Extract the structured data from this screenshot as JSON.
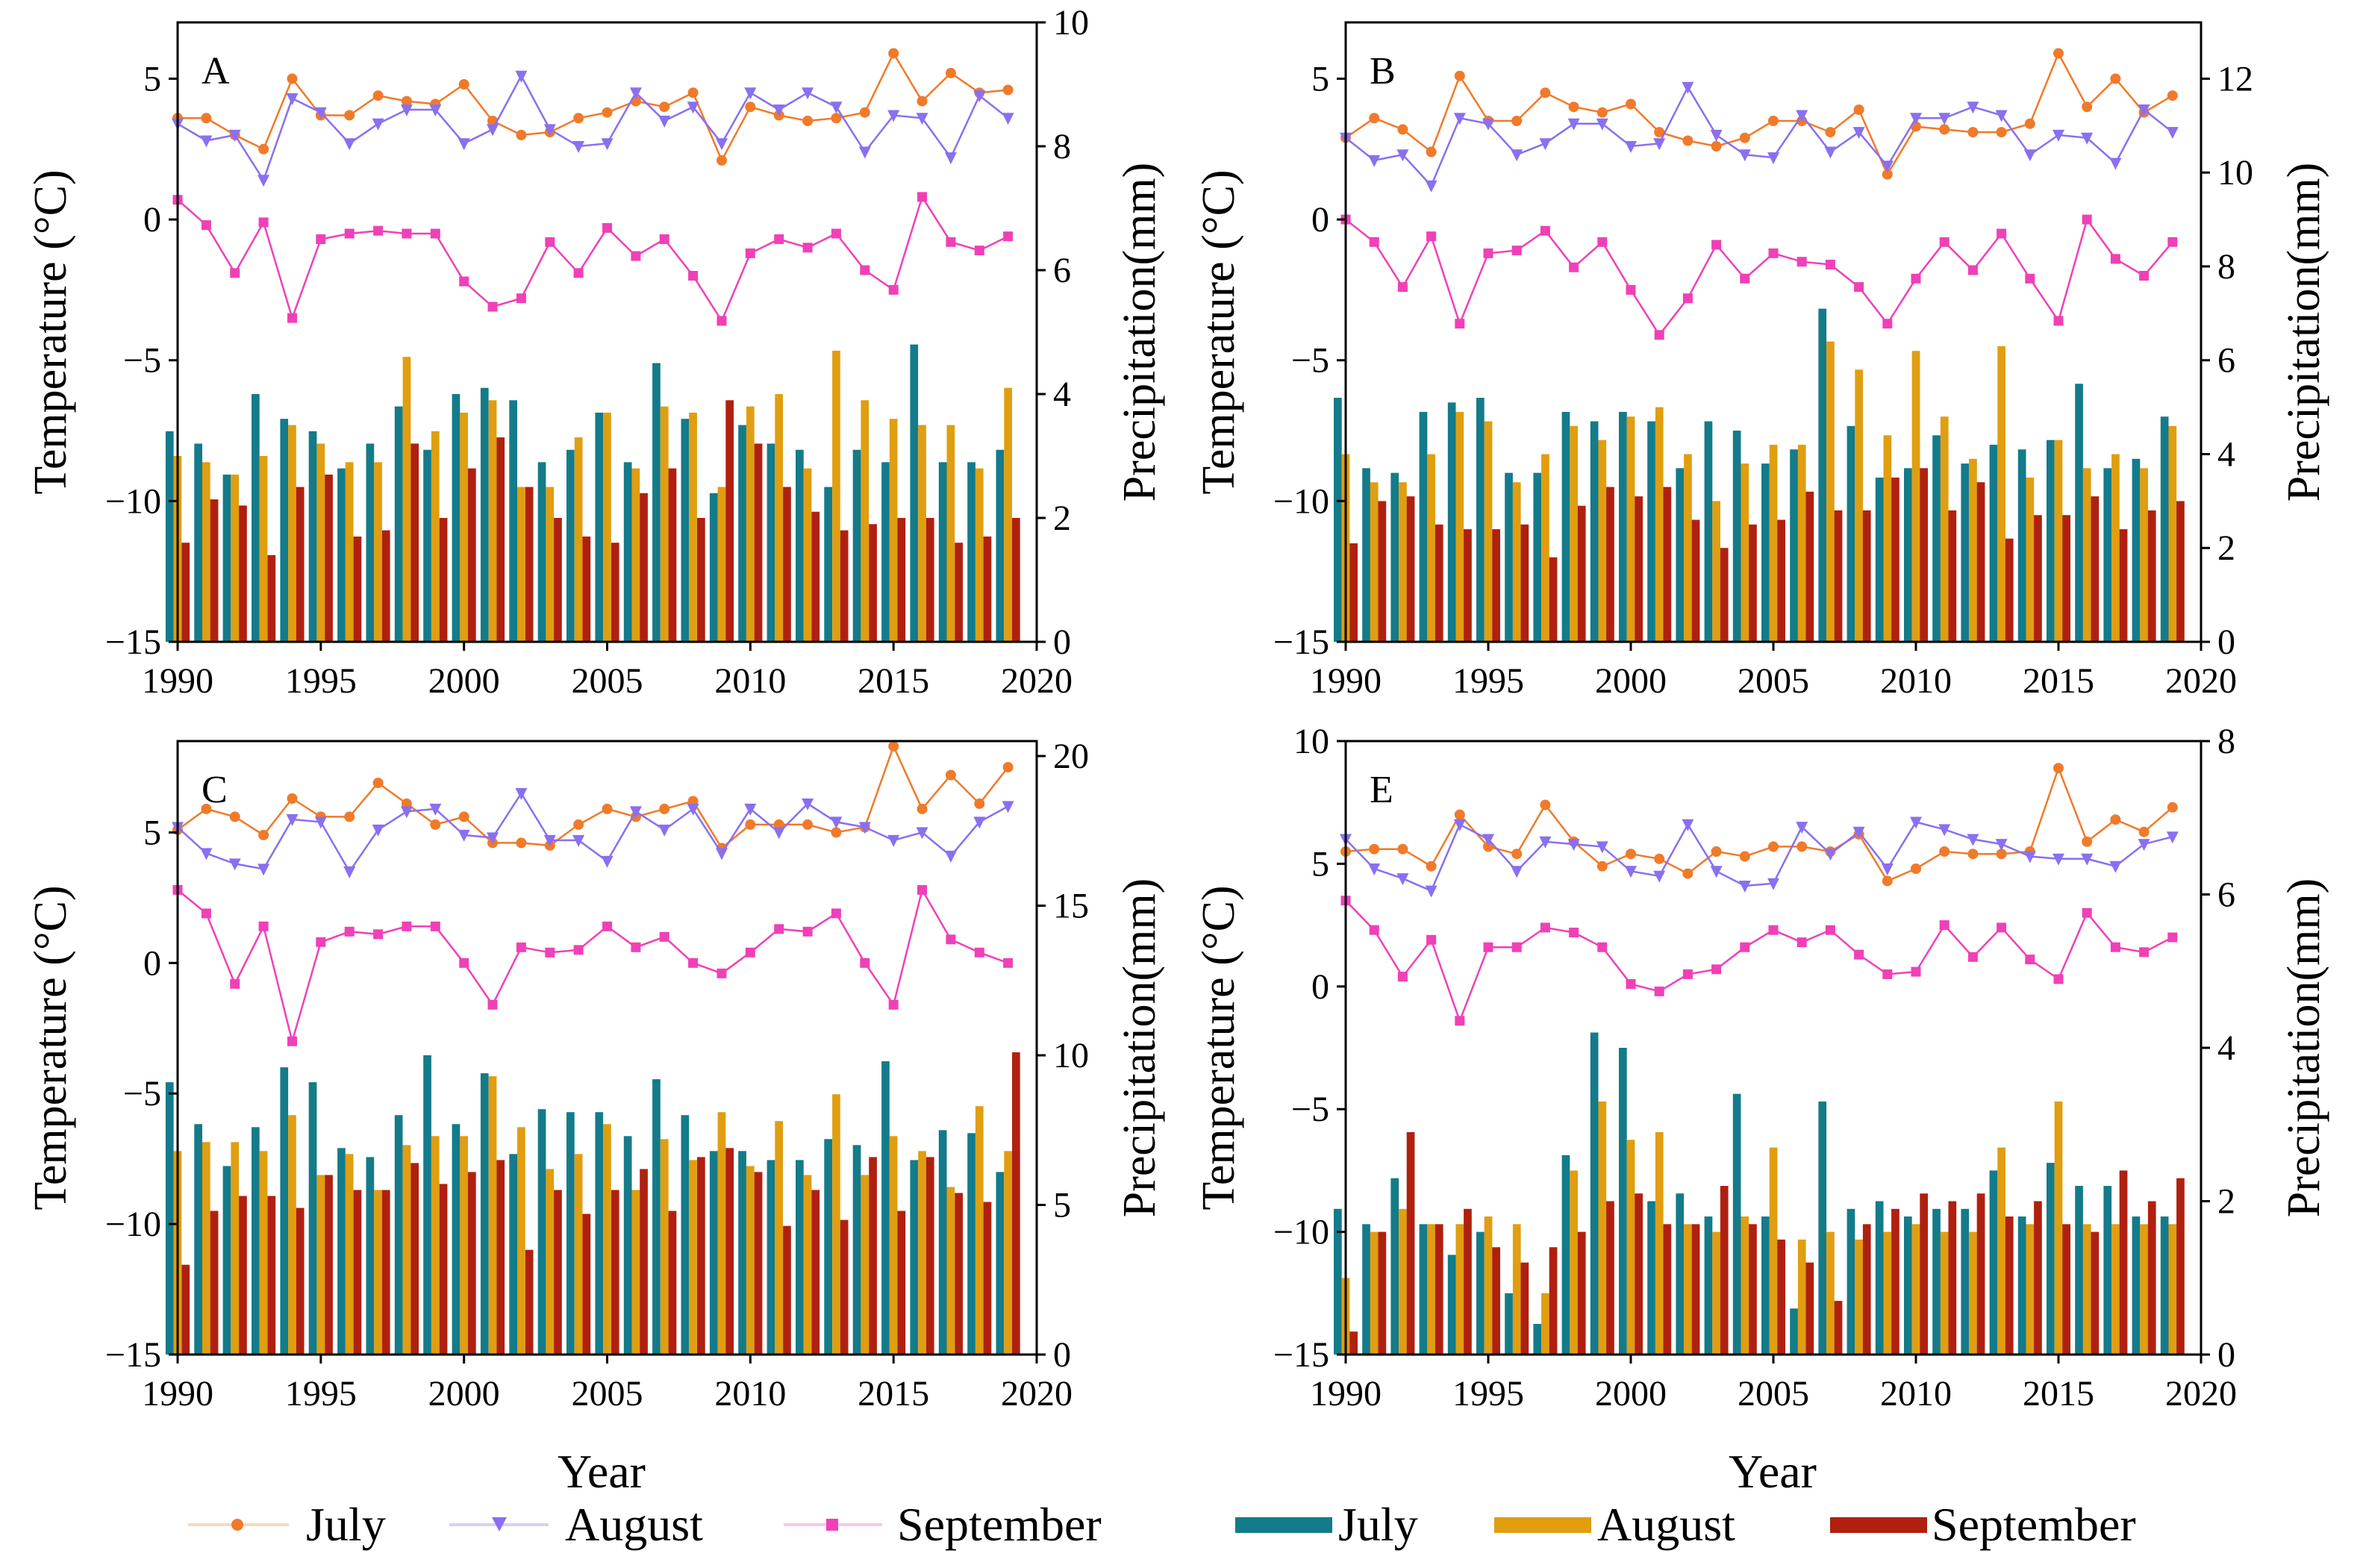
{
  "figure": {
    "x_title": "Year",
    "colors": {
      "temp_july": "#f07a2a",
      "temp_august": "#8a6ff0",
      "temp_september": "#f040b8",
      "precip_july": "#137b8a",
      "precip_august": "#e09e10",
      "precip_september": "#b02010",
      "legend_line_july": "#f8d8c2",
      "legend_line_august": "#d8d0f8",
      "legend_line_september": "#f8c8ec"
    },
    "legend": [
      {
        "label": "July",
        "kind": "line",
        "marker": "circle"
      },
      {
        "label": "August",
        "kind": "line",
        "marker": "triangle-down"
      },
      {
        "label": "September",
        "kind": "line",
        "marker": "square"
      },
      {
        "label": "July",
        "kind": "bar"
      },
      {
        "label": "August",
        "kind": "bar"
      },
      {
        "label": "September",
        "kind": "bar"
      }
    ]
  },
  "chart_data": [
    {
      "type": "bar+line",
      "panel_label": "A",
      "ylabel_left": "Temperature (°C)",
      "ylabel_right": "Precipitation(mm)",
      "xlim": [
        1990,
        2020
      ],
      "xticks": [
        1990,
        1995,
        2000,
        2005,
        2010,
        2015,
        2020
      ],
      "ylim_left": [
        -15,
        7
      ],
      "yticks_left": [
        -15,
        -10,
        -5,
        0,
        5
      ],
      "ylim_right": [
        0,
        10
      ],
      "yticks_right": [
        0,
        2,
        4,
        6,
        8,
        10
      ],
      "years": [
        1990,
        1991,
        1992,
        1993,
        1994,
        1995,
        1996,
        1997,
        1998,
        1999,
        2000,
        2001,
        2002,
        2003,
        2004,
        2005,
        2006,
        2007,
        2008,
        2009,
        2010,
        2011,
        2012,
        2013,
        2014,
        2015,
        2016,
        2017,
        2018,
        2019
      ],
      "temperature": [
        {
          "name": "July",
          "values": [
            3.6,
            3.6,
            3.0,
            2.5,
            5.0,
            3.7,
            3.7,
            4.4,
            4.2,
            4.1,
            4.8,
            3.5,
            3.0,
            3.1,
            3.6,
            3.8,
            4.2,
            4.0,
            4.5,
            2.1,
            4.0,
            3.7,
            3.5,
            3.6,
            3.8,
            5.9,
            4.2,
            5.2,
            4.5,
            4.6
          ]
        },
        {
          "name": "August",
          "values": [
            3.4,
            2.8,
            3.0,
            1.4,
            4.3,
            3.8,
            2.7,
            3.4,
            3.9,
            3.9,
            2.7,
            3.2,
            5.1,
            3.2,
            2.6,
            2.7,
            4.5,
            3.5,
            4.0,
            2.7,
            4.5,
            3.9,
            4.5,
            4.0,
            2.4,
            3.7,
            3.6,
            2.2,
            4.4,
            3.6
          ]
        },
        {
          "name": "September",
          "values": [
            0.7,
            -0.2,
            -1.9,
            -0.1,
            -3.5,
            -0.7,
            -0.5,
            -0.4,
            -0.5,
            -0.5,
            -2.2,
            -3.1,
            -2.8,
            -0.8,
            -1.9,
            -0.3,
            -1.3,
            -0.7,
            -2.0,
            -3.6,
            -1.2,
            -0.7,
            -1.0,
            -0.5,
            -1.8,
            -2.5,
            0.8,
            -0.8,
            -1.1,
            -0.6
          ]
        }
      ],
      "precipitation": [
        {
          "name": "July",
          "values": [
            3.4,
            3.2,
            2.7,
            4.0,
            3.6,
            3.4,
            2.8,
            3.2,
            3.8,
            3.1,
            4.0,
            4.1,
            3.9,
            2.9,
            3.1,
            3.7,
            2.9,
            4.5,
            3.6,
            2.4,
            3.5,
            3.2,
            3.1,
            2.5,
            3.1,
            2.9,
            4.8,
            2.9,
            2.9,
            3.1
          ]
        },
        {
          "name": "August",
          "values": [
            3.0,
            2.9,
            2.7,
            3.0,
            3.5,
            3.2,
            2.9,
            2.9,
            4.6,
            3.4,
            3.7,
            3.9,
            2.5,
            2.5,
            3.3,
            3.7,
            2.8,
            3.8,
            3.7,
            2.5,
            3.8,
            4.0,
            2.8,
            4.7,
            3.9,
            3.6,
            3.5,
            3.5,
            2.8,
            4.1
          ]
        },
        {
          "name": "September",
          "values": [
            1.6,
            2.3,
            2.2,
            1.4,
            2.5,
            2.7,
            1.7,
            1.8,
            3.2,
            2.0,
            2.8,
            3.3,
            2.5,
            2.0,
            1.7,
            1.6,
            2.4,
            2.8,
            2.0,
            3.9,
            3.2,
            2.5,
            2.1,
            1.8,
            1.9,
            2.0,
            2.0,
            1.6,
            1.7,
            2.0
          ]
        }
      ]
    },
    {
      "type": "bar+line",
      "panel_label": "B",
      "ylabel_left": "Temperature (°C)",
      "ylabel_right": "Precipitation(mm)",
      "xlim": [
        1990,
        2020
      ],
      "xticks": [
        1990,
        1995,
        2000,
        2005,
        2010,
        2015,
        2020
      ],
      "ylim_left": [
        -15,
        7
      ],
      "yticks_left": [
        -15,
        -10,
        -5,
        0,
        5
      ],
      "ylim_right": [
        0,
        13.2
      ],
      "yticks_right": [
        0,
        2,
        4,
        6,
        8,
        10,
        12
      ],
      "years": [
        1990,
        1991,
        1992,
        1993,
        1994,
        1995,
        1996,
        1997,
        1998,
        1999,
        2000,
        2001,
        2002,
        2003,
        2004,
        2005,
        2006,
        2007,
        2008,
        2009,
        2010,
        2011,
        2012,
        2013,
        2014,
        2015,
        2016,
        2017,
        2018,
        2019
      ],
      "temperature": [
        {
          "name": "July",
          "values": [
            2.9,
            3.6,
            3.2,
            2.4,
            5.1,
            3.5,
            3.5,
            4.5,
            4.0,
            3.8,
            4.1,
            3.1,
            2.8,
            2.6,
            2.9,
            3.5,
            3.5,
            3.1,
            3.9,
            1.6,
            3.3,
            3.2,
            3.1,
            3.1,
            3.4,
            5.9,
            4.0,
            5.0,
            3.8,
            4.4
          ]
        },
        {
          "name": "August",
          "values": [
            2.9,
            2.1,
            2.3,
            1.2,
            3.6,
            3.4,
            2.3,
            2.7,
            3.4,
            3.4,
            2.6,
            2.7,
            4.7,
            3.0,
            2.3,
            2.2,
            3.7,
            2.4,
            3.1,
            1.9,
            3.6,
            3.6,
            4.0,
            3.7,
            2.3,
            3.0,
            2.9,
            2.0,
            3.9,
            3.1
          ]
        },
        {
          "name": "September",
          "values": [
            0.0,
            -0.8,
            -2.4,
            -0.6,
            -3.7,
            -1.2,
            -1.1,
            -0.4,
            -1.7,
            -0.8,
            -2.5,
            -4.1,
            -2.8,
            -0.9,
            -2.1,
            -1.2,
            -1.5,
            -1.6,
            -2.4,
            -3.7,
            -2.1,
            -0.8,
            -1.8,
            -0.5,
            -2.1,
            -3.6,
            0.0,
            -1.4,
            -2.0,
            -0.8
          ]
        }
      ],
      "precipitation": [
        {
          "name": "July",
          "values": [
            5.2,
            3.7,
            3.6,
            4.9,
            5.1,
            5.2,
            3.6,
            3.6,
            4.9,
            4.7,
            4.9,
            4.7,
            3.7,
            4.7,
            4.5,
            3.8,
            4.1,
            7.1,
            4.6,
            3.5,
            3.7,
            4.4,
            3.8,
            4.2,
            4.1,
            4.3,
            5.5,
            3.7,
            3.9,
            4.8
          ]
        },
        {
          "name": "August",
          "values": [
            4.0,
            3.4,
            3.4,
            4.0,
            4.9,
            4.7,
            3.4,
            4.0,
            4.6,
            4.3,
            4.8,
            5.0,
            4.0,
            3.0,
            3.8,
            4.2,
            4.2,
            6.4,
            5.8,
            4.4,
            6.2,
            4.8,
            3.9,
            6.3,
            3.5,
            4.3,
            3.7,
            4.0,
            3.7,
            4.6
          ]
        },
        {
          "name": "September",
          "values": [
            2.1,
            3.0,
            3.1,
            2.5,
            2.4,
            2.4,
            2.5,
            1.8,
            2.9,
            3.3,
            3.1,
            3.3,
            2.6,
            2.0,
            2.5,
            2.6,
            3.2,
            2.8,
            2.8,
            3.5,
            3.7,
            2.8,
            3.4,
            2.2,
            2.7,
            2.7,
            3.1,
            2.4,
            2.8,
            3.0
          ]
        }
      ]
    },
    {
      "type": "bar+line",
      "panel_label": "C",
      "ylabel_left": "Temperature (°C)",
      "ylabel_right": "Precipitation(mm)",
      "xlim": [
        1990,
        2020
      ],
      "xticks": [
        1990,
        1995,
        2000,
        2005,
        2010,
        2015,
        2020
      ],
      "ylim_left": [
        -15,
        8.5
      ],
      "yticks_left": [
        -15,
        -10,
        -5,
        0,
        5
      ],
      "ylim_right": [
        0,
        20.5
      ],
      "yticks_right": [
        0,
        5,
        10,
        15,
        20
      ],
      "years": [
        1990,
        1991,
        1992,
        1993,
        1994,
        1995,
        1996,
        1997,
        1998,
        1999,
        2000,
        2001,
        2002,
        2003,
        2004,
        2005,
        2006,
        2007,
        2008,
        2009,
        2010,
        2011,
        2012,
        2013,
        2014,
        2015,
        2016,
        2017,
        2018,
        2019
      ],
      "temperature": [
        {
          "name": "July",
          "values": [
            5.1,
            5.9,
            5.6,
            4.9,
            6.3,
            5.6,
            5.6,
            6.9,
            6.1,
            5.3,
            5.6,
            4.6,
            4.6,
            4.5,
            5.3,
            5.9,
            5.6,
            5.9,
            6.2,
            4.4,
            5.3,
            5.3,
            5.3,
            5.0,
            5.2,
            8.3,
            5.9,
            7.2,
            6.1,
            7.5
          ]
        },
        {
          "name": "August",
          "values": [
            5.2,
            4.2,
            3.8,
            3.6,
            5.5,
            5.4,
            3.5,
            5.1,
            5.8,
            5.9,
            4.9,
            4.8,
            6.5,
            4.7,
            4.7,
            3.9,
            5.8,
            5.1,
            5.9,
            4.2,
            5.9,
            5.0,
            6.1,
            5.4,
            5.2,
            4.7,
            5.0,
            4.1,
            5.4,
            6.0
          ]
        },
        {
          "name": "September",
          "values": [
            2.8,
            1.9,
            -0.8,
            1.4,
            -3.0,
            0.8,
            1.2,
            1.1,
            1.4,
            1.4,
            0.0,
            -1.6,
            0.6,
            0.4,
            0.5,
            1.4,
            0.6,
            1.0,
            0.0,
            -0.4,
            0.4,
            1.3,
            1.2,
            1.9,
            0.0,
            -1.6,
            2.8,
            0.9,
            0.4,
            0.0
          ]
        }
      ],
      "precipitation": [
        {
          "name": "July",
          "values": [
            9.1,
            7.7,
            6.3,
            7.6,
            9.6,
            9.1,
            6.9,
            6.6,
            8.0,
            10.0,
            7.7,
            9.4,
            6.7,
            8.2,
            8.1,
            8.1,
            7.3,
            9.2,
            8.0,
            6.8,
            6.8,
            6.5,
            6.5,
            7.2,
            7.0,
            9.8,
            6.5,
            7.5,
            7.4,
            6.1
          ]
        },
        {
          "name": "August",
          "values": [
            6.8,
            7.1,
            7.1,
            6.8,
            8.0,
            6.0,
            6.7,
            5.5,
            7.0,
            7.3,
            7.3,
            9.3,
            7.6,
            6.2,
            6.7,
            7.7,
            5.5,
            7.2,
            6.5,
            8.1,
            6.3,
            7.8,
            6.0,
            8.7,
            6.0,
            7.3,
            6.8,
            5.6,
            8.3,
            6.8
          ]
        },
        {
          "name": "September",
          "values": [
            3.0,
            4.8,
            5.3,
            5.3,
            4.9,
            6.0,
            5.5,
            5.5,
            6.4,
            5.7,
            6.1,
            6.5,
            3.5,
            5.5,
            4.7,
            5.5,
            6.2,
            4.8,
            6.6,
            6.9,
            6.1,
            4.3,
            5.5,
            4.5,
            6.6,
            4.8,
            6.6,
            5.4,
            5.1,
            10.1
          ]
        }
      ]
    },
    {
      "type": "bar+line",
      "panel_label": "E",
      "ylabel_left": "Temperature (°C)",
      "ylabel_right": "Precipitation(mm)",
      "xlim": [
        1990,
        2020
      ],
      "xticks": [
        1990,
        1995,
        2000,
        2005,
        2010,
        2015,
        2020
      ],
      "ylim_left": [
        -15,
        10
      ],
      "yticks_left": [
        -15,
        -10,
        -5,
        0,
        5,
        10
      ],
      "ylim_right": [
        0,
        8
      ],
      "yticks_right": [
        0,
        2,
        4,
        6,
        8
      ],
      "years": [
        1990,
        1991,
        1992,
        1993,
        1994,
        1995,
        1996,
        1997,
        1998,
        1999,
        2000,
        2001,
        2002,
        2003,
        2004,
        2005,
        2006,
        2007,
        2008,
        2009,
        2010,
        2011,
        2012,
        2013,
        2014,
        2015,
        2016,
        2017,
        2018,
        2019
      ],
      "temperature": [
        {
          "name": "July",
          "values": [
            5.5,
            5.6,
            5.6,
            4.9,
            7.0,
            5.7,
            5.4,
            7.4,
            5.9,
            4.9,
            5.4,
            5.2,
            4.6,
            5.5,
            5.3,
            5.7,
            5.7,
            5.5,
            6.2,
            4.3,
            4.8,
            5.5,
            5.4,
            5.4,
            5.5,
            8.9,
            5.9,
            6.8,
            6.3,
            7.3
          ]
        },
        {
          "name": "August",
          "values": [
            6.0,
            4.8,
            4.4,
            3.9,
            6.6,
            6.0,
            4.7,
            5.9,
            5.8,
            5.7,
            4.7,
            4.5,
            6.6,
            4.7,
            4.1,
            4.2,
            6.5,
            5.4,
            6.3,
            4.8,
            6.7,
            6.4,
            6.0,
            5.8,
            5.3,
            5.2,
            5.2,
            4.9,
            5.8,
            6.1
          ]
        },
        {
          "name": "September",
          "values": [
            3.5,
            2.3,
            0.4,
            1.9,
            -1.4,
            1.6,
            1.6,
            2.4,
            2.2,
            1.6,
            0.1,
            -0.2,
            0.5,
            0.7,
            1.6,
            2.3,
            1.8,
            2.3,
            1.3,
            0.5,
            0.6,
            2.5,
            1.2,
            2.4,
            1.1,
            0.3,
            3.0,
            1.6,
            1.4,
            2.0
          ]
        }
      ],
      "precipitation": [
        {
          "name": "July",
          "values": [
            1.9,
            1.7,
            2.3,
            1.7,
            1.3,
            1.6,
            0.8,
            0.4,
            2.6,
            4.2,
            4.0,
            2.0,
            2.1,
            1.8,
            3.4,
            1.8,
            0.6,
            3.3,
            1.9,
            2.0,
            1.8,
            1.9,
            1.9,
            2.4,
            1.8,
            2.5,
            2.2,
            2.2,
            1.8,
            1.8
          ]
        },
        {
          "name": "August",
          "values": [
            1.0,
            1.6,
            1.9,
            1.7,
            1.7,
            1.8,
            1.7,
            0.8,
            2.4,
            3.3,
            2.8,
            2.9,
            1.7,
            1.6,
            1.8,
            2.7,
            1.5,
            1.6,
            1.5,
            1.6,
            1.7,
            1.6,
            1.6,
            2.7,
            1.7,
            3.3,
            1.7,
            1.7,
            1.7,
            1.7
          ]
        },
        {
          "name": "September",
          "values": [
            0.3,
            1.6,
            2.9,
            1.7,
            1.9,
            1.4,
            1.2,
            1.4,
            1.6,
            2.0,
            2.1,
            1.7,
            1.7,
            2.2,
            1.7,
            1.5,
            1.2,
            0.7,
            1.7,
            1.9,
            2.1,
            2.0,
            2.1,
            1.8,
            2.0,
            1.7,
            1.6,
            2.4,
            2.0,
            2.3
          ]
        }
      ]
    }
  ]
}
